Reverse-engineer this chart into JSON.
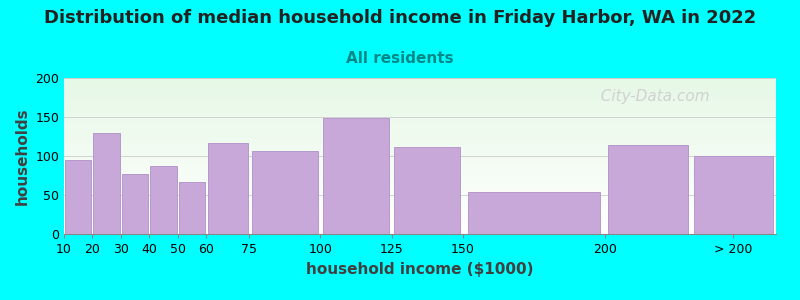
{
  "title": "Distribution of median household income in Friday Harbor, WA in 2022",
  "subtitle": "All residents",
  "xlabel": "household income ($1000)",
  "ylabel": "households",
  "background_color": "#00FFFF",
  "bar_color": "#c8a8d8",
  "bar_edge_color": "#b090c8",
  "categories": [
    "10",
    "20",
    "30",
    "40",
    "50",
    "60",
    "75",
    "100",
    "125",
    "150",
    "200",
    "> 200"
  ],
  "values": [
    95,
    130,
    77,
    87,
    67,
    117,
    106,
    149,
    111,
    54,
    114,
    100
  ],
  "bar_lefts": [
    10,
    20,
    30,
    40,
    50,
    60,
    75,
    100,
    125,
    150,
    200,
    230
  ],
  "bar_widths": [
    10,
    10,
    10,
    10,
    10,
    15,
    25,
    25,
    25,
    50,
    30,
    30
  ],
  "tick_positions": [
    10,
    20,
    30,
    40,
    50,
    60,
    75,
    100,
    125,
    150,
    200,
    245
  ],
  "xlim": [
    10,
    260
  ],
  "ylim": [
    0,
    200
  ],
  "yticks": [
    0,
    50,
    100,
    150,
    200
  ],
  "watermark": "  City-Data.com",
  "title_fontsize": 13,
  "subtitle_fontsize": 11,
  "label_fontsize": 11,
  "tick_fontsize": 9,
  "watermark_fontsize": 11
}
